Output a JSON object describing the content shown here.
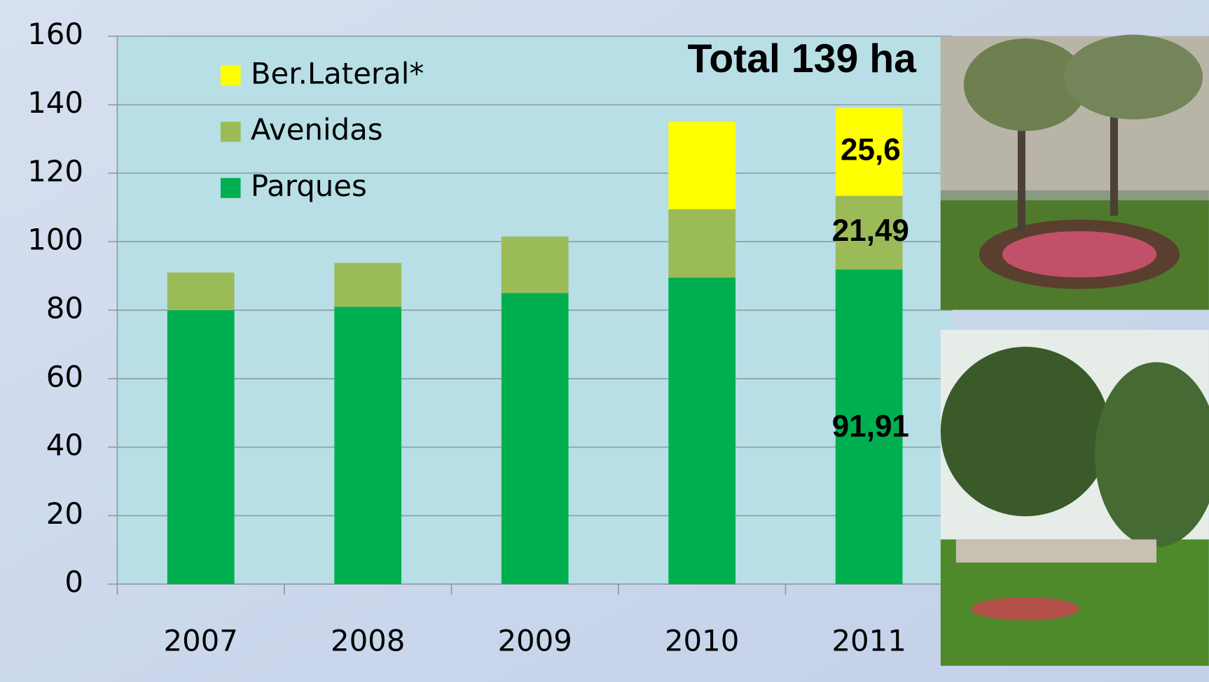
{
  "chart_data": {
    "type": "bar",
    "stacked": true,
    "annotation": "Total 139 ha",
    "categories": [
      "2007",
      "2008",
      "2009",
      "2010",
      "2011"
    ],
    "series": [
      {
        "name": "Parques",
        "color": "#00b050",
        "values": [
          80,
          81,
          85,
          89.5,
          91.91
        ],
        "value_labels": [
          null,
          null,
          null,
          null,
          "91,91"
        ]
      },
      {
        "name": "Avenidas",
        "color": "#9bbb59",
        "values": [
          11,
          12.8,
          16.5,
          20,
          21.49
        ],
        "value_labels": [
          null,
          null,
          null,
          null,
          "21,49"
        ]
      },
      {
        "name": "Ber.Lateral*",
        "color": "#ffff00",
        "values": [
          null,
          null,
          null,
          25.5,
          25.6
        ],
        "value_labels": [
          null,
          null,
          null,
          null,
          "25,6"
        ]
      }
    ],
    "ylim": [
      0,
      160
    ],
    "yticks": [
      0,
      20,
      40,
      60,
      80,
      100,
      120,
      140,
      160
    ],
    "grid": true
  }
}
